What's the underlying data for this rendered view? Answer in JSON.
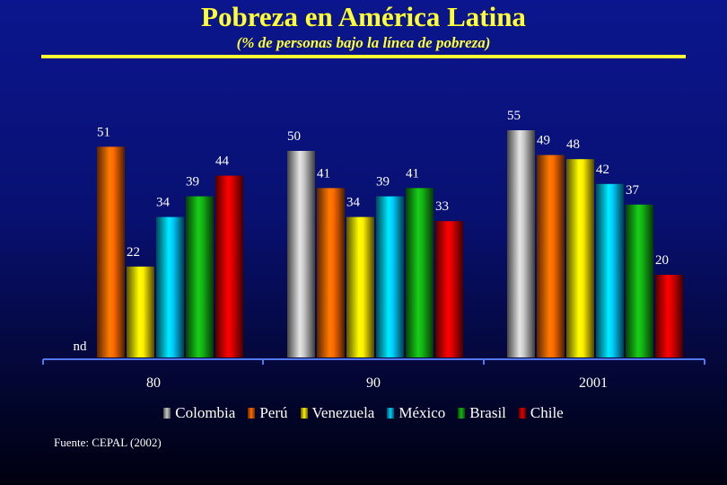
{
  "title": "Pobreza en América Latina",
  "subtitle": "(% de personas bajo la línea de pobreza)",
  "source": "Fuente: CEPAL (2002)",
  "chart_data": {
    "type": "bar",
    "categories": [
      "80",
      "90",
      "2001"
    ],
    "series": [
      {
        "name": "Colombia",
        "color": "#c8c8c8",
        "values": [
          null,
          50,
          55
        ],
        "labels": [
          "nd",
          "50",
          "55"
        ]
      },
      {
        "name": "Perú",
        "color": "#ff6a00",
        "values": [
          51,
          41,
          49
        ],
        "labels": [
          "51",
          "41",
          "49"
        ]
      },
      {
        "name": "Venezuela",
        "color": "#ffee00",
        "values": [
          22,
          34,
          48
        ],
        "labels": [
          "22",
          "34",
          "48"
        ]
      },
      {
        "name": "México",
        "color": "#00ccff",
        "values": [
          34,
          39,
          42
        ],
        "labels": [
          "34",
          "39",
          "42"
        ]
      },
      {
        "name": "Brasil",
        "color": "#14b414",
        "values": [
          39,
          41,
          37
        ],
        "labels": [
          "39",
          "41",
          "37"
        ]
      },
      {
        "name": "Chile",
        "color": "#e00000",
        "values": [
          44,
          33,
          20
        ],
        "labels": [
          "44",
          "33",
          "20"
        ]
      }
    ],
    "ylim": [
      0,
      55
    ],
    "grid": false,
    "legend": "bottom",
    "xlabel": "",
    "ylabel": ""
  }
}
